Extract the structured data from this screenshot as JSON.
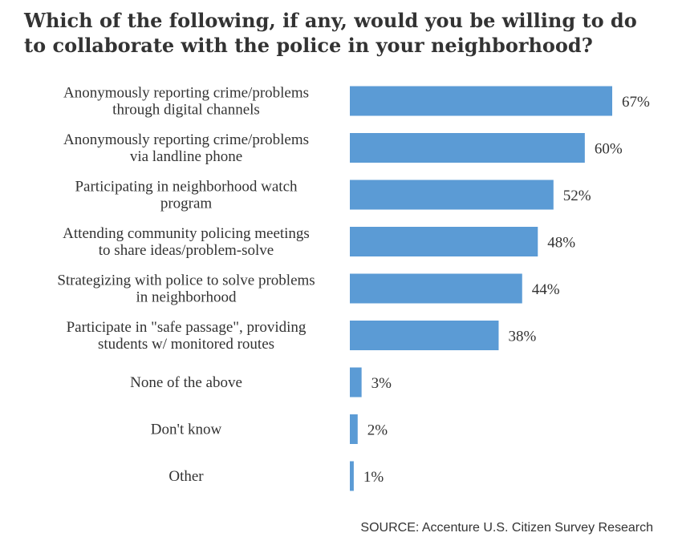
{
  "title": "Which of the following, if any, would you be willing to do to collaborate with the police in your neighborhood?",
  "source": "SOURCE: Accenture U.S. Citizen Survey Research",
  "colors": {
    "bar": "#5b9bd5",
    "text": "#333333"
  },
  "chart_data": {
    "type": "bar",
    "orientation": "horizontal",
    "title": "Which of the following, if any, would you be willing to do to collaborate with the police in your neighborhood?",
    "categories": [
      [
        "Anonymously reporting crime/problems",
        "through digital channels"
      ],
      [
        "Anonymously reporting crime/problems",
        "via landline phone"
      ],
      [
        "Participating in neighborhood watch",
        "program"
      ],
      [
        "Attending community policing meetings",
        "to share ideas/problem-solve"
      ],
      [
        "Strategizing with police to solve problems",
        "in neighborhood"
      ],
      [
        "Participate in \"safe passage\", providing",
        "students w/ monitored routes"
      ],
      [
        "None of the above"
      ],
      [
        "Don't know"
      ],
      [
        "Other"
      ]
    ],
    "values": [
      67,
      60,
      52,
      48,
      44,
      38,
      3,
      2,
      1
    ],
    "value_labels": [
      "67%",
      "60%",
      "52%",
      "48%",
      "44%",
      "38%",
      "3%",
      "2%",
      "1%"
    ],
    "unit": "%",
    "xlim": [
      0,
      67
    ],
    "grid": false,
    "legend": "none"
  }
}
